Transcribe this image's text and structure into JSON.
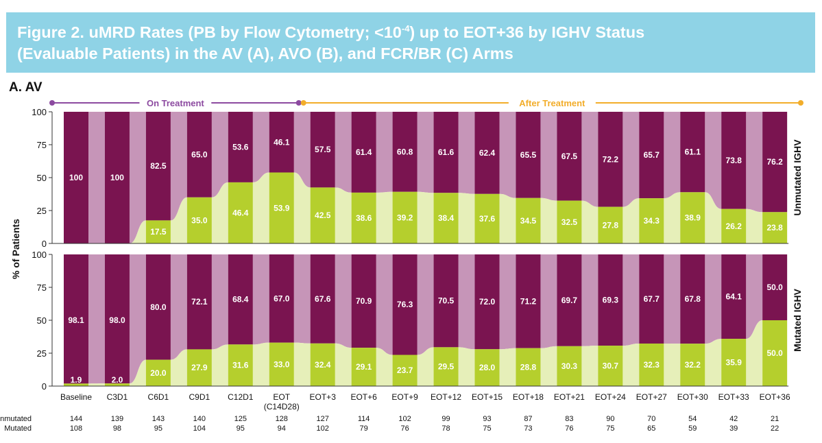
{
  "figure": {
    "title_main": "Figure 2. uMRD Rates (PB by Flow Cytometry; <10",
    "title_sup": "-4",
    "title_rest": ") up to EOT+36 by IGHV Status",
    "title_line2": "(Evaluable Patients) in the AV (A), AVO (B), and FCR/BR (C) Arms",
    "panel_label": "A. AV"
  },
  "colors": {
    "umrd": "#b5cf2d",
    "not_umrd": "#7a1450",
    "flow_umrd": "#e6efb9",
    "flow_not_umrd": "#c695b8",
    "banner": "#8fd3e6",
    "on_treatment": "#8c4aa0",
    "after_treatment": "#f2ad2a"
  },
  "chart_data": {
    "type": "bar",
    "stacked": true,
    "categories": [
      "Baseline",
      "C3D1",
      "C6D1",
      "C9D1",
      "C12D1",
      "EOT",
      "EOT+3",
      "EOT+6",
      "EOT+9",
      "EOT+12",
      "EOT+15",
      "EOT+18",
      "EOT+21",
      "EOT+24",
      "EOT+27",
      "EOT+30",
      "EOT+33",
      "EOT+36"
    ],
    "category_sublabels": [
      "",
      "",
      "",
      "",
      "",
      "(C14D28)",
      "",
      "",
      "",
      "",
      "",
      "",
      "",
      "",
      "",
      "",
      "",
      ""
    ],
    "ylabel": "% of Patients",
    "yticks": [
      0,
      25,
      50,
      75,
      100
    ],
    "ylim": [
      0,
      100
    ],
    "phases": [
      {
        "label": "On Treatment",
        "from": 0,
        "to": 5
      },
      {
        "label": "After Treatment",
        "from": 6,
        "to": 17
      }
    ],
    "panels": [
      {
        "label": "Unmutated IGHV",
        "umrd": [
          null,
          null,
          17.5,
          35.0,
          46.4,
          53.9,
          42.5,
          38.6,
          39.2,
          38.4,
          37.6,
          34.5,
          32.5,
          27.8,
          34.3,
          38.9,
          26.2,
          23.8
        ],
        "not_umrd": [
          100,
          100,
          82.5,
          65.0,
          53.6,
          46.1,
          57.5,
          61.4,
          60.8,
          61.6,
          62.4,
          65.5,
          67.5,
          72.2,
          65.7,
          61.1,
          73.8,
          76.2
        ],
        "umrd_labels": [
          "",
          "",
          "17.5",
          "35.0",
          "46.4",
          "53.9",
          "42.5",
          "38.6",
          "39.2",
          "38.4",
          "37.6",
          "34.5",
          "32.5",
          "27.8",
          "34.3",
          "38.9",
          "26.2",
          "23.8"
        ],
        "not_umrd_labels": [
          "100",
          "100",
          "82.5",
          "65.0",
          "53.6",
          "46.1",
          "57.5",
          "61.4",
          "60.8",
          "61.6",
          "62.4",
          "65.5",
          "67.5",
          "72.2",
          "65.7",
          "61.1",
          "73.8",
          "76.2"
        ]
      },
      {
        "label": "Mutated IGHV",
        "umrd": [
          1.9,
          2.0,
          20.0,
          27.9,
          31.6,
          33.0,
          32.4,
          29.1,
          23.7,
          29.5,
          28.0,
          28.8,
          30.3,
          30.7,
          32.3,
          32.2,
          35.9,
          50.0
        ],
        "not_umrd": [
          98.1,
          98.0,
          80.0,
          72.1,
          68.4,
          67.0,
          67.6,
          70.9,
          76.3,
          70.5,
          72.0,
          71.2,
          69.7,
          69.3,
          67.7,
          67.8,
          64.1,
          50.0
        ],
        "umrd_labels": [
          "1.9",
          "2.0",
          "20.0",
          "27.9",
          "31.6",
          "33.0",
          "32.4",
          "29.1",
          "23.7",
          "29.5",
          "28.0",
          "28.8",
          "30.3",
          "30.7",
          "32.3",
          "32.2",
          "35.9",
          "50.0"
        ],
        "not_umrd_labels": [
          "98.1",
          "98.0",
          "80.0",
          "72.1",
          "68.4",
          "67.0",
          "67.6",
          "70.9",
          "76.3",
          "70.5",
          "72.0",
          "71.2",
          "69.7",
          "69.3",
          "67.7",
          "67.8",
          "64.1",
          "50.0"
        ]
      }
    ],
    "n_table": [
      {
        "label": "Unmutated",
        "values": [
          144,
          139,
          143,
          140,
          125,
          128,
          127,
          114,
          102,
          99,
          93,
          87,
          83,
          90,
          70,
          54,
          42,
          21
        ]
      },
      {
        "label": "Mutated",
        "values": [
          108,
          98,
          95,
          104,
          95,
          94,
          102,
          79,
          76,
          78,
          75,
          73,
          76,
          75,
          65,
          59,
          39,
          22
        ]
      }
    ]
  }
}
